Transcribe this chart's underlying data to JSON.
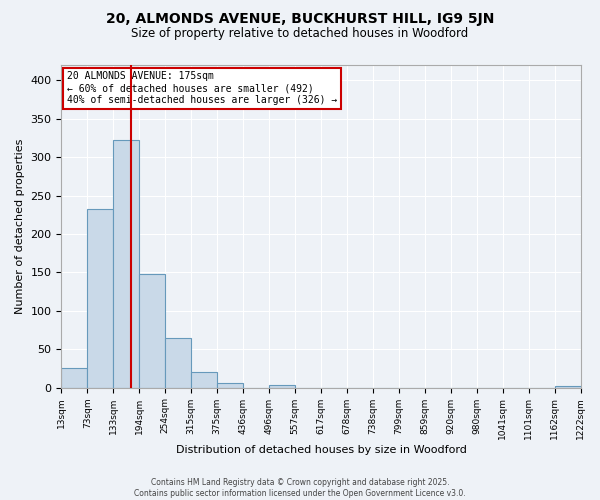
{
  "title1": "20, ALMONDS AVENUE, BUCKHURST HILL, IG9 5JN",
  "title2": "Size of property relative to detached houses in Woodford",
  "xlabel": "Distribution of detached houses by size in Woodford",
  "ylabel": "Number of detached properties",
  "bin_labels": [
    "13sqm",
    "73sqm",
    "133sqm",
    "194sqm",
    "254sqm",
    "315sqm",
    "375sqm",
    "436sqm",
    "496sqm",
    "557sqm",
    "617sqm",
    "678sqm",
    "738sqm",
    "799sqm",
    "859sqm",
    "920sqm",
    "980sqm",
    "1041sqm",
    "1101sqm",
    "1162sqm",
    "1222sqm"
  ],
  "bar_values": [
    25,
    233,
    322,
    148,
    65,
    20,
    6,
    0,
    3,
    0,
    0,
    0,
    0,
    0,
    0,
    0,
    0,
    0,
    0,
    2
  ],
  "bar_color": "#c9d9e8",
  "bar_edge_color": "#6699bb",
  "red_line_x": 2.69,
  "annotation_title": "20 ALMONDS AVENUE: 175sqm",
  "annotation_line1": "← 60% of detached houses are smaller (492)",
  "annotation_line2": "40% of semi-detached houses are larger (326) →",
  "annotation_box_color": "#ffffff",
  "annotation_border_color": "#cc0000",
  "footer1": "Contains HM Land Registry data © Crown copyright and database right 2025.",
  "footer2": "Contains public sector information licensed under the Open Government Licence v3.0.",
  "ylim": [
    0,
    420
  ],
  "yticks": [
    0,
    50,
    100,
    150,
    200,
    250,
    300,
    350,
    400
  ],
  "background_color": "#eef2f7",
  "grid_color": "#ffffff"
}
